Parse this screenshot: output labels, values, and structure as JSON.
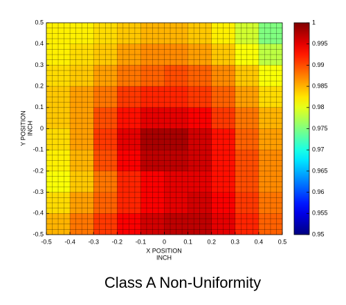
{
  "chart_data": {
    "type": "heatmap",
    "caption": "Class A Non-Uniformity",
    "xlabel": [
      "X POSITION",
      "INCH"
    ],
    "ylabel": [
      "Y POSITION",
      "INCH"
    ],
    "x": [
      -0.45,
      -0.35,
      -0.25,
      -0.15,
      -0.05,
      0.05,
      0.15,
      0.25,
      0.35,
      0.45
    ],
    "y": [
      0.45,
      0.35,
      0.25,
      0.15,
      0.05,
      -0.05,
      -0.15,
      -0.25,
      -0.35,
      -0.45
    ],
    "values": [
      [
        0.982,
        0.982,
        0.983,
        0.984,
        0.985,
        0.985,
        0.984,
        0.982,
        0.979,
        0.975
      ],
      [
        0.982,
        0.983,
        0.984,
        0.986,
        0.987,
        0.987,
        0.986,
        0.984,
        0.981,
        0.978
      ],
      [
        0.983,
        0.984,
        0.986,
        0.988,
        0.989,
        0.99,
        0.989,
        0.987,
        0.984,
        0.981
      ],
      [
        0.984,
        0.986,
        0.988,
        0.991,
        0.992,
        0.992,
        0.991,
        0.989,
        0.986,
        0.983
      ],
      [
        0.984,
        0.986,
        0.99,
        0.993,
        0.995,
        0.995,
        0.994,
        0.991,
        0.988,
        0.985
      ],
      [
        0.983,
        0.986,
        0.991,
        0.995,
        0.998,
        0.998,
        0.996,
        0.993,
        0.989,
        0.986
      ],
      [
        0.982,
        0.985,
        0.99,
        0.994,
        0.997,
        0.997,
        0.996,
        0.993,
        0.99,
        0.987
      ],
      [
        0.981,
        0.984,
        0.988,
        0.992,
        0.994,
        0.995,
        0.995,
        0.993,
        0.99,
        0.987
      ],
      [
        0.983,
        0.986,
        0.989,
        0.992,
        0.994,
        0.995,
        0.996,
        0.994,
        0.991,
        0.988
      ],
      [
        0.985,
        0.988,
        0.991,
        0.994,
        0.996,
        0.997,
        0.997,
        0.995,
        0.992,
        0.989
      ]
    ],
    "xlim": [
      -0.5,
      0.5
    ],
    "ylim": [
      -0.5,
      0.5
    ],
    "xticks": [
      -0.5,
      -0.4,
      -0.3,
      -0.2,
      -0.1,
      0,
      0.1,
      0.2,
      0.3,
      0.4,
      0.5
    ],
    "yticks": [
      -0.5,
      -0.4,
      -0.3,
      -0.2,
      -0.1,
      0,
      0.1,
      0.2,
      0.3,
      0.4,
      0.5
    ],
    "colormap": "jet",
    "clim": [
      0.95,
      1
    ],
    "cticks": [
      0.95,
      0.955,
      0.96,
      0.965,
      0.97,
      0.975,
      0.98,
      0.985,
      0.99,
      0.995,
      1
    ]
  }
}
